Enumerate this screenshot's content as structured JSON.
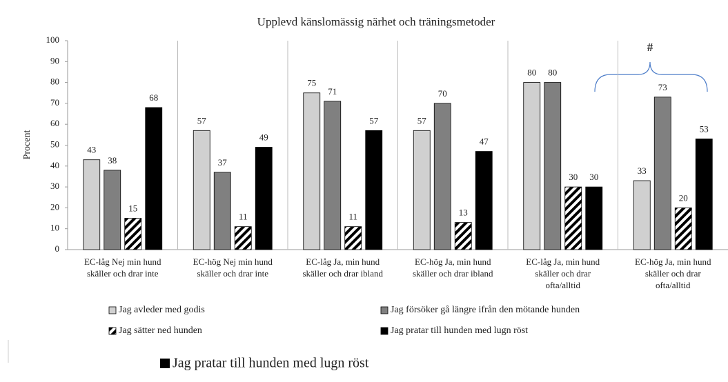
{
  "chart_data": {
    "type": "bar",
    "title": "Upplevd känslomässig närhet och träningsmetoder",
    "y_label": "Procent",
    "categories": [
      [
        "EC-låg Nej min hund",
        "skäller och drar inte"
      ],
      [
        "EC-hög Nej min hund",
        "skäller och drar inte"
      ],
      [
        "EC-låg Ja, min hund",
        "skäller och drar ibland"
      ],
      [
        "EC-hög Ja, min hund",
        "skäller och drar ibland"
      ],
      [
        "EC-låg Ja, min hund",
        "skäller och drar",
        "ofta/alltid"
      ],
      [
        "EC-hög Ja, min hund",
        "skäller och drar",
        "ofta/alltid"
      ]
    ],
    "series": [
      {
        "name": "Jag avleder med godis",
        "color": "#d0d0d0",
        "values": [
          43,
          57,
          75,
          57,
          80,
          33
        ]
      },
      {
        "name": "Jag försöker gå längre ifrån den mötande hunden",
        "color": "#808080",
        "values": [
          38,
          37,
          71,
          70,
          80,
          73
        ]
      },
      {
        "name": "Jag sätter ned hunden",
        "color": "#000000",
        "pattern": "hatch",
        "values": [
          15,
          11,
          11,
          13,
          30,
          20
        ]
      },
      {
        "name": "Jag pratar till hunden med lugn röst",
        "color": "#000000",
        "values": [
          68,
          49,
          57,
          47,
          30,
          53
        ]
      }
    ],
    "annotation": "#",
    "ylim": [
      0,
      100
    ],
    "yticks": [
      0,
      10,
      20,
      30,
      40,
      50,
      60,
      70,
      80,
      90,
      100
    ],
    "legend": "bottom"
  }
}
